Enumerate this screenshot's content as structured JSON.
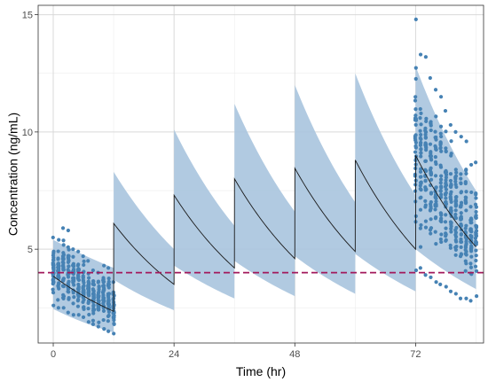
{
  "chart_data": {
    "type": "line",
    "title": "",
    "xlabel": "Time (hr)",
    "ylabel": "Concentration (ng/mL)",
    "xlim": [
      -3,
      85.5
    ],
    "ylim": [
      1.0,
      15.4
    ],
    "x_ticks": [
      0,
      24,
      48,
      72
    ],
    "y_ticks": [
      5,
      10,
      15
    ],
    "grid": true,
    "legend": "none",
    "colors": {
      "band": "#a9c4de",
      "median_line": "#1a1a1a",
      "observations": "#4682b4",
      "reference_line": "#a2185b",
      "grid": "#d9d9d9",
      "panel_border": "#333333"
    },
    "reference_line": {
      "y": 4.0,
      "style": "dashed"
    },
    "dose_times": [
      0,
      12,
      24,
      36,
      48,
      60,
      72
    ],
    "median_line": {
      "x": [
        0,
        12,
        12.01,
        24,
        24.01,
        36,
        36.01,
        48,
        48.01,
        60,
        60.01,
        72,
        72.01,
        84
      ],
      "y": [
        3.85,
        2.35,
        6.1,
        3.5,
        7.3,
        4.2,
        8.0,
        4.6,
        8.45,
        4.9,
        8.8,
        5.0,
        9.0,
        5.1
      ],
      "shape": "exponential decay within each dosing interval"
    },
    "prediction_interval": {
      "x": [
        0,
        12,
        12.01,
        24,
        24.01,
        36,
        36.01,
        48,
        48.01,
        60,
        60.01,
        72,
        72.01,
        84
      ],
      "upper": [
        5.4,
        4.2,
        8.3,
        5.0,
        10.1,
        6.0,
        11.2,
        6.6,
        12.0,
        7.0,
        12.5,
        7.3,
        12.8,
        7.5
      ],
      "lower": [
        2.45,
        1.45,
        3.7,
        2.4,
        4.3,
        2.9,
        4.5,
        3.0,
        4.7,
        3.1,
        4.8,
        3.2,
        5.0,
        3.3
      ]
    },
    "observations": {
      "sampling_times": [
        0,
        1,
        2,
        3,
        4,
        5,
        6,
        7,
        8,
        9,
        10,
        11,
        12,
        72,
        73,
        74,
        75,
        76,
        77,
        78,
        79,
        80,
        81,
        82,
        83,
        84
      ],
      "y_min": [
        2.6,
        2.5,
        2.5,
        2.3,
        2.2,
        2.2,
        2.1,
        1.9,
        1.8,
        1.7,
        1.6,
        1.5,
        1.4,
        4.1,
        4.2,
        3.9,
        3.8,
        3.6,
        3.5,
        3.4,
        3.2,
        3.1,
        2.9,
        2.9,
        2.8,
        3.0
      ],
      "y_max": [
        5.5,
        5.4,
        5.9,
        5.8,
        5.0,
        4.9,
        4.7,
        4.5,
        4.1,
        4.0,
        4.3,
        4.2,
        3.6,
        14.8,
        13.3,
        13.2,
        12.3,
        11.8,
        11.5,
        10.9,
        10.3,
        10.0,
        9.8,
        9.6,
        8.6,
        8.7
      ],
      "marker": "filled circle"
    }
  }
}
